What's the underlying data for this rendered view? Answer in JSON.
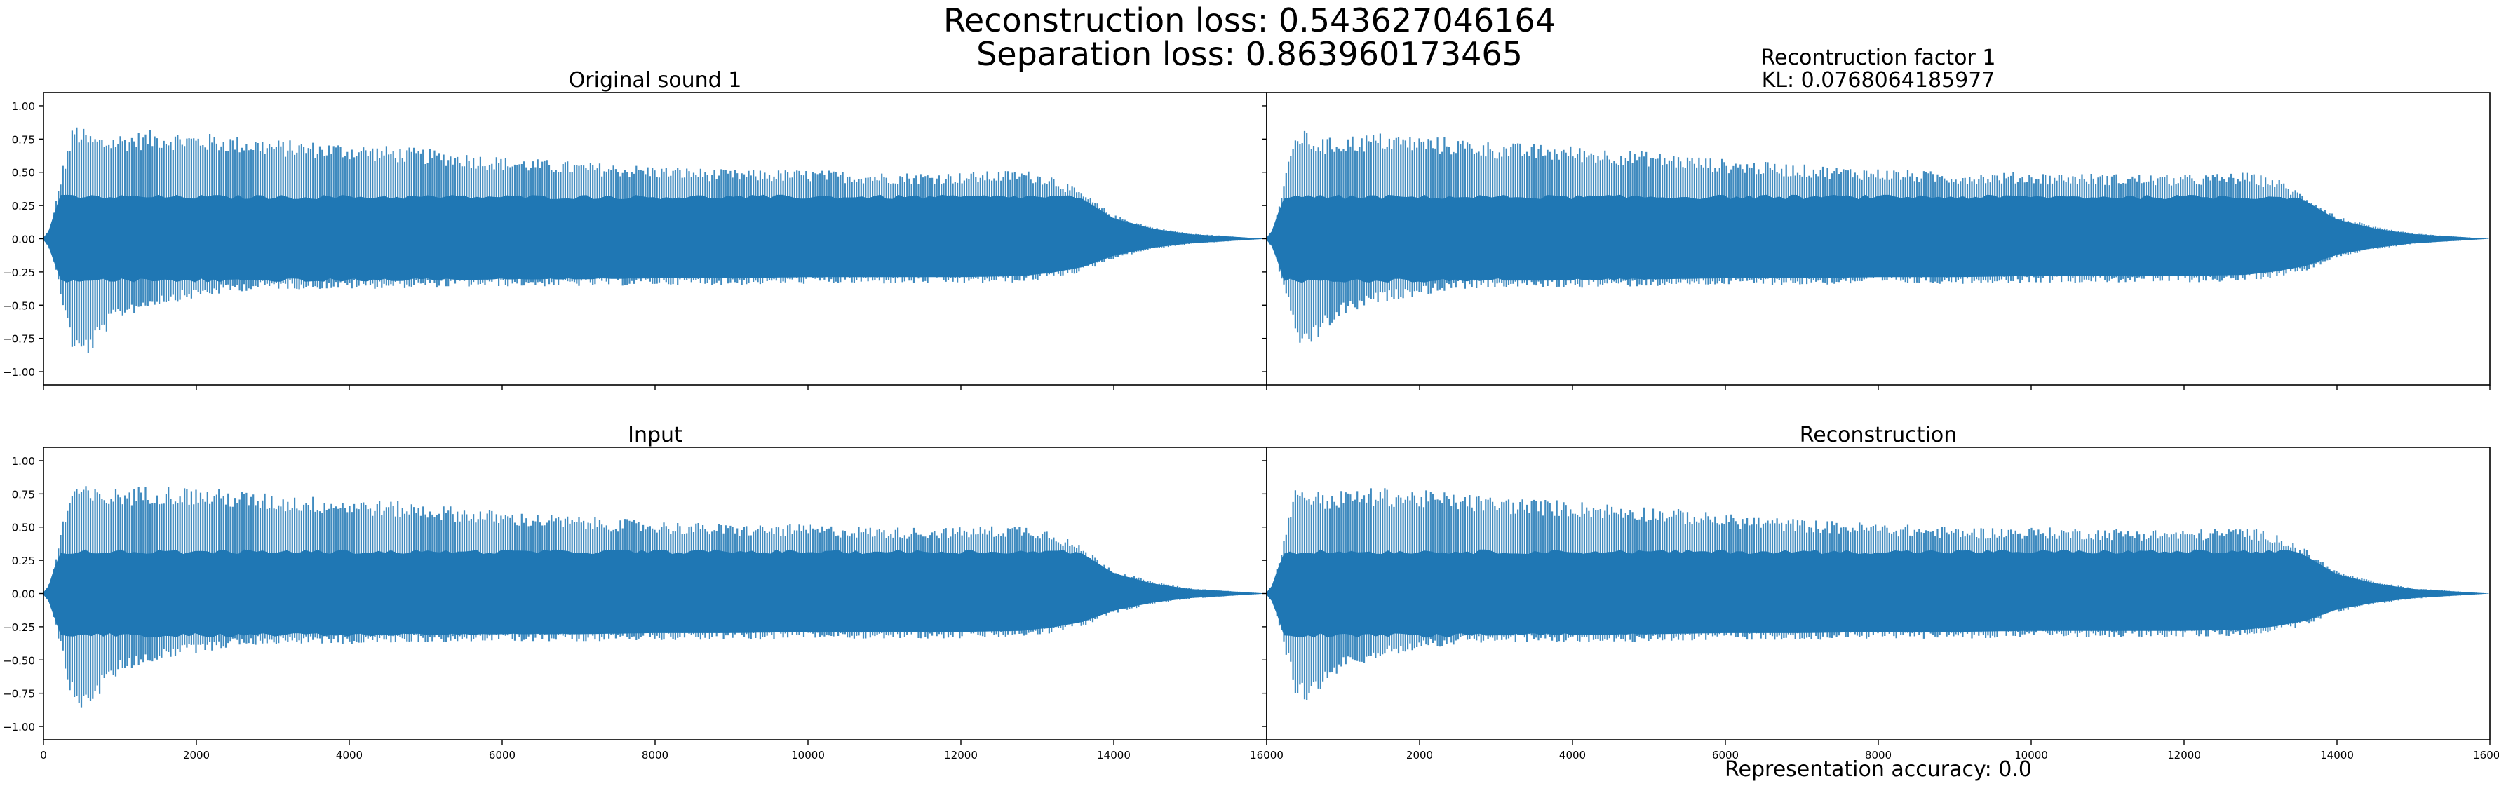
{
  "figure": {
    "suptitle_line1": "Reconstruction loss: 0.543627046164",
    "suptitle_line2": "Separation loss: 0.863960173465",
    "bottom_right_xlabel": "Representation accuracy: 0.0",
    "series_color": "#1f77b4",
    "background": "#ffffff"
  },
  "chart_data": [
    {
      "type": "line",
      "title": "Original sound 1",
      "xlim": [
        0,
        16000
      ],
      "ylim": [
        -1.1,
        1.1
      ],
      "x_ticks": [
        0,
        2000,
        4000,
        6000,
        8000,
        10000,
        12000,
        14000,
        16000
      ],
      "y_ticks": [
        -1.0,
        -0.75,
        -0.5,
        -0.25,
        0.0,
        0.25,
        0.5,
        0.75,
        1.0
      ],
      "y_tick_labels": [
        "−1.00",
        "−0.75",
        "−0.50",
        "−0.25",
        "0.00",
        "0.25",
        "0.50",
        "0.75",
        "1.00"
      ],
      "x_tick_labels_visible": false,
      "y_tick_labels_visible": true,
      "envelope": {
        "x": [
          0,
          100,
          250,
          400,
          600,
          800,
          1000,
          1500,
          2000,
          2500,
          3000,
          4000,
          5000,
          6000,
          7000,
          8000,
          9000,
          10000,
          11000,
          12000,
          12800,
          13200,
          13600,
          14000,
          14500,
          15000,
          15500,
          16000
        ],
        "upper": [
          0.0,
          0.1,
          0.55,
          0.88,
          0.8,
          0.78,
          0.8,
          0.82,
          0.8,
          0.78,
          0.75,
          0.72,
          0.68,
          0.62,
          0.58,
          0.55,
          0.52,
          0.52,
          0.5,
          0.5,
          0.52,
          0.48,
          0.35,
          0.18,
          0.09,
          0.04,
          0.02,
          0.0
        ],
        "lower": [
          0.0,
          -0.1,
          -0.5,
          -0.9,
          -0.88,
          -0.72,
          -0.6,
          -0.5,
          -0.45,
          -0.4,
          -0.38,
          -0.38,
          -0.37,
          -0.36,
          -0.36,
          -0.35,
          -0.35,
          -0.34,
          -0.34,
          -0.34,
          -0.33,
          -0.3,
          -0.25,
          -0.15,
          -0.08,
          -0.04,
          -0.02,
          0.0
        ]
      }
    },
    {
      "type": "line",
      "title": "Recontruction factor 1\nKL: 0.0768064185977",
      "xlim": [
        0,
        16000
      ],
      "ylim": [
        -1.1,
        1.1
      ],
      "x_ticks": [
        0,
        2000,
        4000,
        6000,
        8000,
        10000,
        12000,
        14000,
        16000
      ],
      "y_ticks": [
        -1.0,
        -0.75,
        -0.5,
        -0.25,
        0.0,
        0.25,
        0.5,
        0.75,
        1.0
      ],
      "x_tick_labels_visible": false,
      "y_tick_labels_visible": false,
      "envelope": {
        "x": [
          0,
          100,
          250,
          400,
          600,
          800,
          1000,
          1500,
          2000,
          2500,
          3000,
          4000,
          5000,
          6000,
          7000,
          8000,
          9000,
          10000,
          11000,
          12000,
          12800,
          13200,
          13600,
          14000,
          14500,
          15000,
          15500,
          16000
        ],
        "upper": [
          0.0,
          0.1,
          0.5,
          0.85,
          0.78,
          0.76,
          0.78,
          0.8,
          0.78,
          0.76,
          0.73,
          0.7,
          0.66,
          0.6,
          0.56,
          0.53,
          0.5,
          0.5,
          0.49,
          0.48,
          0.5,
          0.46,
          0.33,
          0.17,
          0.09,
          0.04,
          0.02,
          0.0
        ],
        "lower": [
          0.0,
          -0.1,
          -0.45,
          -0.82,
          -0.8,
          -0.68,
          -0.58,
          -0.48,
          -0.43,
          -0.38,
          -0.37,
          -0.37,
          -0.36,
          -0.35,
          -0.35,
          -0.34,
          -0.34,
          -0.33,
          -0.33,
          -0.33,
          -0.32,
          -0.29,
          -0.24,
          -0.14,
          -0.08,
          -0.04,
          -0.02,
          0.0
        ]
      }
    },
    {
      "type": "line",
      "title": "Input",
      "xlim": [
        0,
        16000
      ],
      "ylim": [
        -1.1,
        1.1
      ],
      "x_ticks": [
        0,
        2000,
        4000,
        6000,
        8000,
        10000,
        12000,
        14000,
        16000
      ],
      "x_tick_labels": [
        "0",
        "2000",
        "4000",
        "6000",
        "8000",
        "10000",
        "12000",
        "14000",
        "16000"
      ],
      "y_ticks": [
        -1.0,
        -0.75,
        -0.5,
        -0.25,
        0.0,
        0.25,
        0.5,
        0.75,
        1.0
      ],
      "y_tick_labels": [
        "−1.00",
        "−0.75",
        "−0.50",
        "−0.25",
        "0.00",
        "0.25",
        "0.50",
        "0.75",
        "1.00"
      ],
      "x_tick_labels_visible": true,
      "y_tick_labels_visible": true,
      "envelope": {
        "x": [
          0,
          100,
          250,
          400,
          600,
          800,
          1000,
          1500,
          2000,
          2500,
          3000,
          4000,
          5000,
          6000,
          7000,
          8000,
          9000,
          10000,
          11000,
          12000,
          12800,
          13200,
          13600,
          14000,
          14500,
          15000,
          15500,
          16000
        ],
        "upper": [
          0.0,
          0.1,
          0.55,
          0.85,
          0.8,
          0.78,
          0.8,
          0.82,
          0.8,
          0.78,
          0.75,
          0.72,
          0.68,
          0.62,
          0.58,
          0.55,
          0.52,
          0.52,
          0.5,
          0.5,
          0.52,
          0.48,
          0.35,
          0.18,
          0.09,
          0.04,
          0.02,
          0.0
        ],
        "lower": [
          0.0,
          -0.1,
          -0.5,
          -0.87,
          -0.86,
          -0.72,
          -0.6,
          -0.5,
          -0.45,
          -0.4,
          -0.38,
          -0.38,
          -0.37,
          -0.36,
          -0.36,
          -0.35,
          -0.35,
          -0.34,
          -0.34,
          -0.34,
          -0.33,
          -0.3,
          -0.25,
          -0.15,
          -0.08,
          -0.04,
          -0.02,
          0.0
        ]
      }
    },
    {
      "type": "line",
      "title": "Reconstruction",
      "xlim": [
        0,
        16000
      ],
      "ylim": [
        -1.1,
        1.1
      ],
      "x_ticks": [
        0,
        2000,
        4000,
        6000,
        8000,
        10000,
        12000,
        14000,
        16000
      ],
      "x_tick_labels": [
        "0",
        "2000",
        "4000",
        "6000",
        "8000",
        "10000",
        "12000",
        "14000",
        "16000"
      ],
      "y_ticks": [
        -1.0,
        -0.75,
        -0.5,
        -0.25,
        0.0,
        0.25,
        0.5,
        0.75,
        1.0
      ],
      "x_tick_labels_visible": true,
      "y_tick_labels_visible": false,
      "envelope": {
        "x": [
          0,
          100,
          250,
          400,
          600,
          800,
          1000,
          1500,
          2000,
          2500,
          3000,
          4000,
          5000,
          6000,
          7000,
          8000,
          9000,
          10000,
          11000,
          12000,
          12800,
          13200,
          13600,
          14000,
          14500,
          15000,
          15500,
          16000
        ],
        "upper": [
          0.0,
          0.1,
          0.5,
          0.85,
          0.78,
          0.76,
          0.78,
          0.8,
          0.78,
          0.76,
          0.73,
          0.7,
          0.66,
          0.6,
          0.56,
          0.53,
          0.5,
          0.5,
          0.49,
          0.48,
          0.5,
          0.46,
          0.33,
          0.17,
          0.09,
          0.04,
          0.02,
          0.0
        ],
        "lower": [
          0.0,
          -0.1,
          -0.45,
          -0.82,
          -0.8,
          -0.68,
          -0.58,
          -0.48,
          -0.43,
          -0.38,
          -0.37,
          -0.37,
          -0.36,
          -0.35,
          -0.35,
          -0.34,
          -0.34,
          -0.33,
          -0.33,
          -0.33,
          -0.32,
          -0.29,
          -0.24,
          -0.14,
          -0.08,
          -0.04,
          -0.02,
          0.0
        ]
      }
    }
  ]
}
